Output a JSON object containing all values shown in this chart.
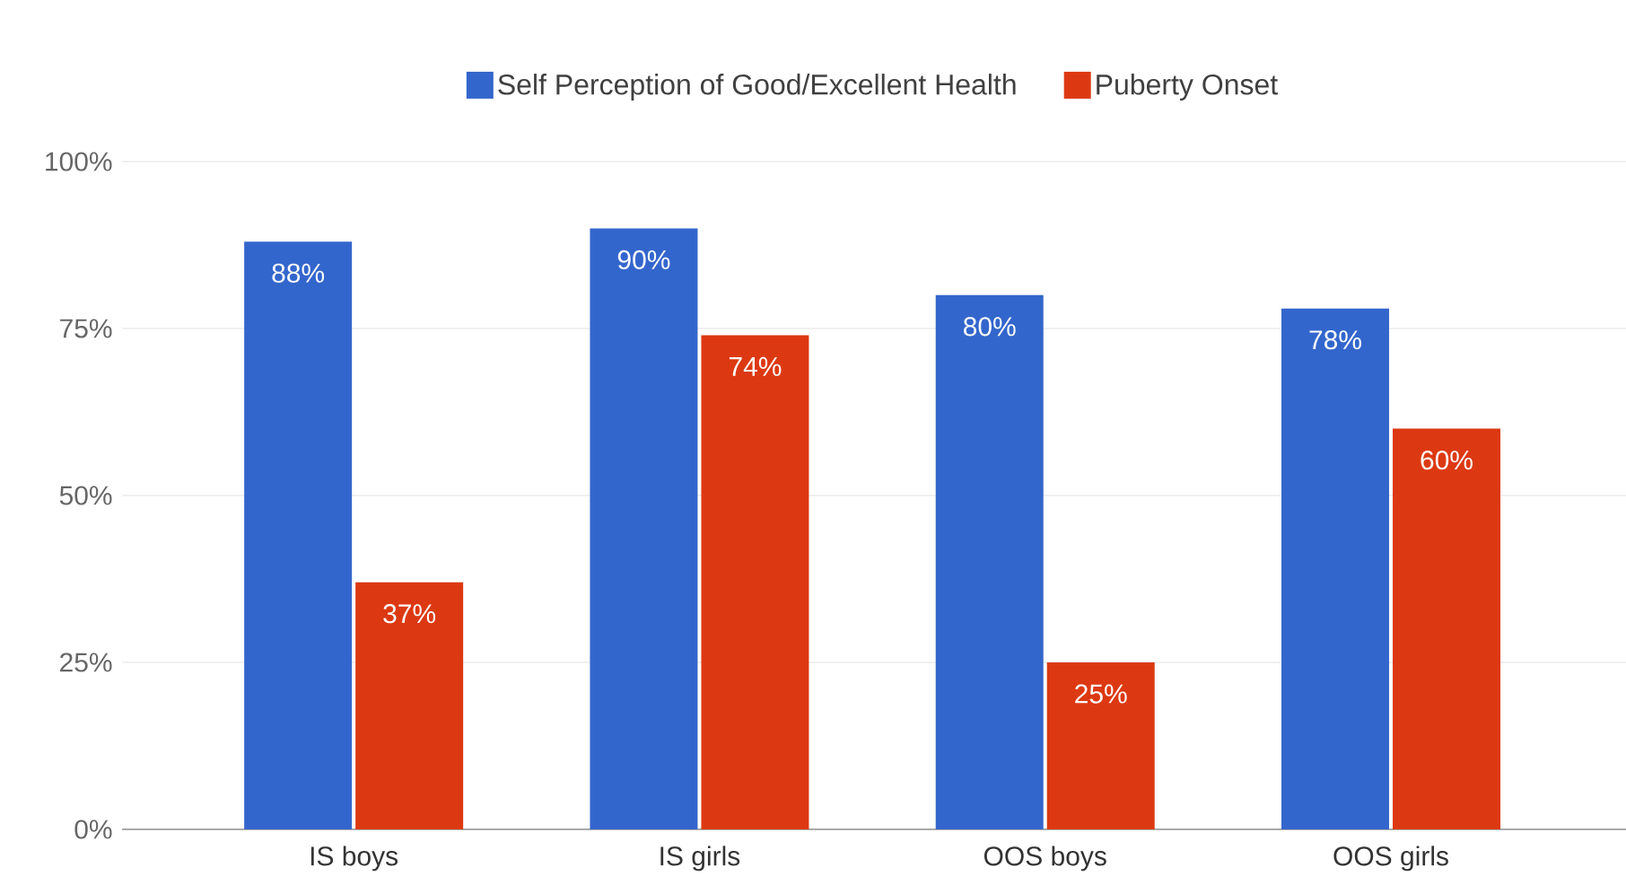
{
  "chart_data": {
    "type": "bar",
    "categories": [
      "IS boys",
      "IS girls",
      "OOS boys",
      "OOS girls"
    ],
    "series": [
      {
        "name": "Self Perception of Good/Excellent Health",
        "color": "#3366cc",
        "values": [
          88,
          90,
          80,
          78
        ],
        "value_labels": [
          "88%",
          "90%",
          "80%",
          "78%"
        ]
      },
      {
        "name": "Puberty Onset",
        "color": "#dc3912",
        "values": [
          37,
          74,
          25,
          60
        ],
        "value_labels": [
          "37%",
          "74%",
          "25%",
          "60%"
        ]
      }
    ],
    "ylim": [
      0,
      100
    ],
    "yticks": [
      {
        "value": 0,
        "label": "0%"
      },
      {
        "value": 25,
        "label": "25%"
      },
      {
        "value": 50,
        "label": "50%"
      },
      {
        "value": 75,
        "label": "75%"
      },
      {
        "value": 100,
        "label": "100%"
      }
    ],
    "grid": "y",
    "legend": "top"
  }
}
